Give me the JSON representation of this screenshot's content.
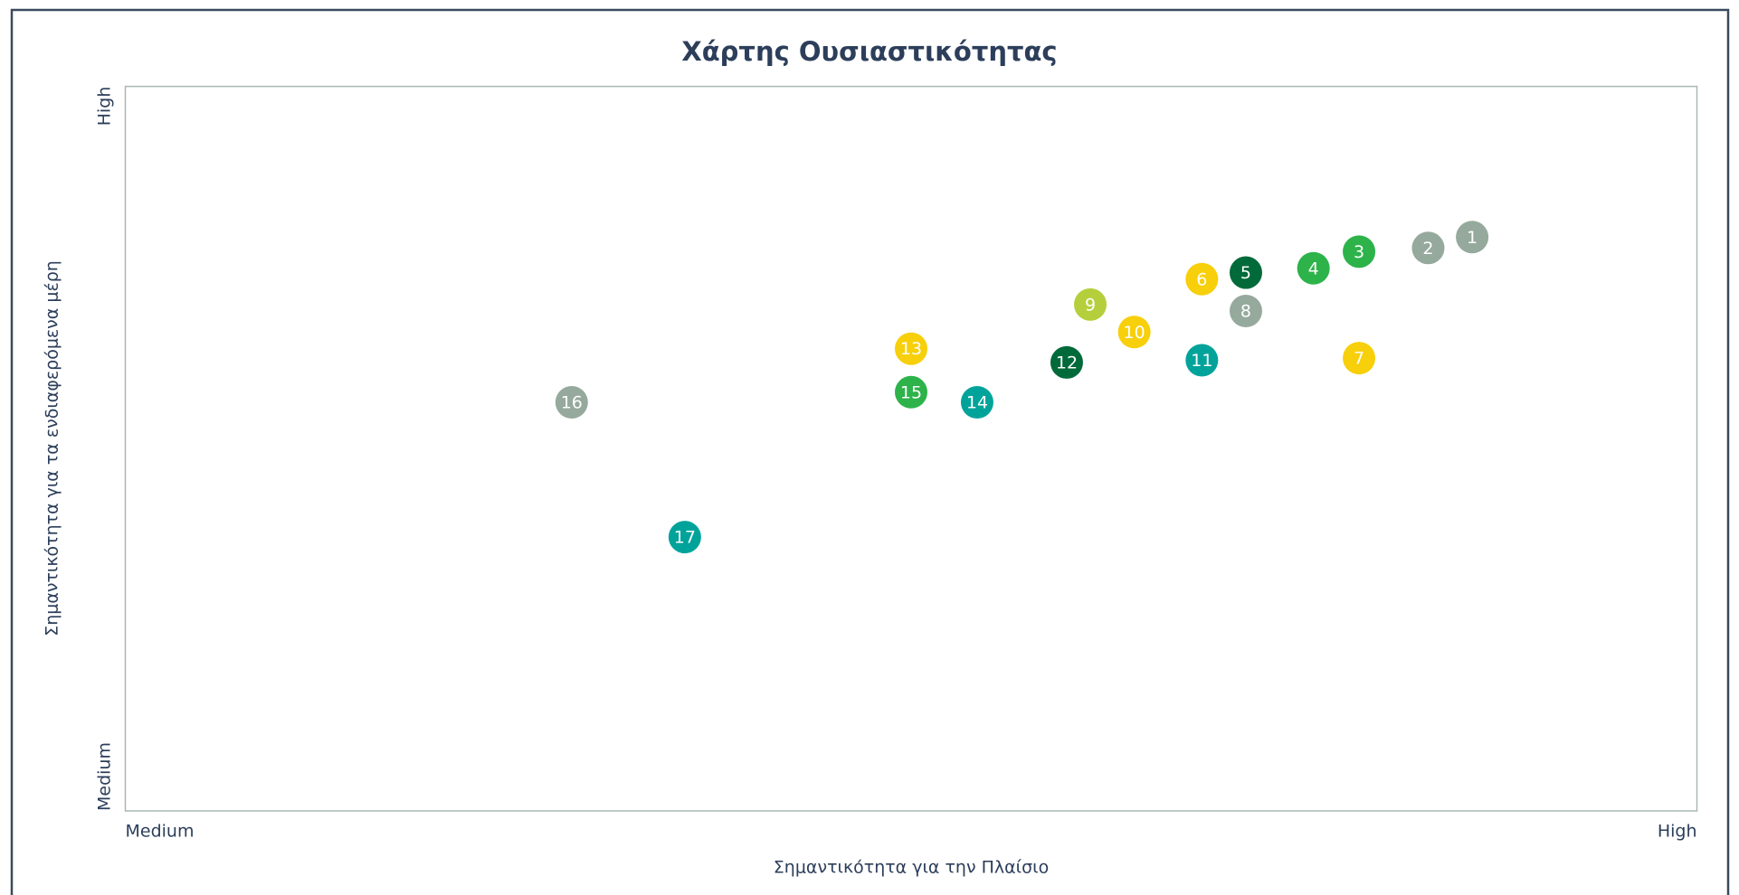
{
  "chart_data": {
    "type": "scatter",
    "title": "Χάρτης Ουσιαστικότητας",
    "x_label": "Σημαντικότητα για την Πλαίσιο",
    "y_label": "Σημαντικότητα για τα ενδιαφερόμενα μέρη",
    "xlim": [
      0,
      100
    ],
    "ylim": [
      0,
      100
    ],
    "xticks": [
      {
        "value": 0,
        "label": "Medium"
      },
      {
        "value": 100,
        "label": "High"
      }
    ],
    "yticks": [
      {
        "value": 0,
        "label": "Medium"
      },
      {
        "value": 100,
        "label": "High"
      }
    ],
    "labels": [
      "1",
      "2",
      "3",
      "4",
      "5",
      "6",
      "7",
      "8",
      "9",
      "10",
      "11",
      "12",
      "13",
      "14",
      "15",
      "16",
      "17"
    ],
    "x": [
      85.7,
      82.9,
      78.5,
      75.6,
      71.3,
      68.5,
      78.5,
      71.3,
      61.4,
      64.2,
      68.5,
      59.9,
      50.0,
      54.2,
      50.0,
      28.4,
      35.6
    ],
    "y": [
      79.2,
      77.7,
      77.2,
      74.9,
      74.3,
      73.4,
      62.5,
      69.0,
      69.9,
      66.1,
      62.2,
      61.9,
      63.8,
      56.4,
      57.8,
      56.4,
      37.8
    ],
    "colors": [
      "#95a99c",
      "#95a99c",
      "#2db34a",
      "#2db34a",
      "#006a3a",
      "#f7cf0a",
      "#f7cf0a",
      "#95a99c",
      "#b5cf3c",
      "#f7cf0a",
      "#00a39a",
      "#006a3a",
      "#f7cf0a",
      "#00a39a",
      "#2db34a",
      "#95a99c",
      "#00a39a"
    ]
  }
}
